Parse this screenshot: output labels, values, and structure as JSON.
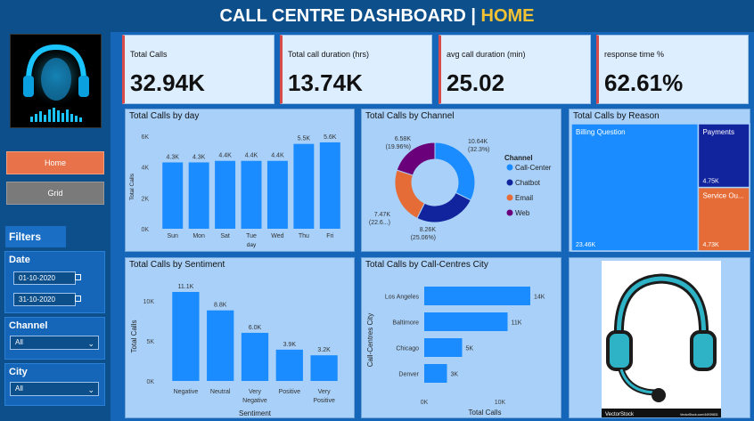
{
  "header": {
    "title": "CALL CENTRE DASHBOARD",
    "separator": " | ",
    "page": "HOME"
  },
  "nav": {
    "home": "Home",
    "grid": "Grid"
  },
  "filters": {
    "title": "Filters",
    "date_label": "Date",
    "date_from": "01-10-2020",
    "date_to": "31-10-2020",
    "channel_label": "Channel",
    "channel_value": "All",
    "city_label": "City",
    "city_value": "All"
  },
  "kpis": [
    {
      "title": "Total Calls",
      "value": "32.94K"
    },
    {
      "title": "Total call duration (hrs)",
      "value": "13.74K"
    },
    {
      "title": "avg call duration (min)",
      "value": "25.02"
    },
    {
      "title": "response time %",
      "value": "62.61%"
    }
  ],
  "chart_data": [
    {
      "type": "bar",
      "title": "Total Calls by day",
      "xlabel": "day",
      "ylabel": "Total Calls",
      "categories": [
        "Sun",
        "Mon",
        "Sat",
        "Tue",
        "Wed",
        "Thu",
        "Fri"
      ],
      "values": [
        4300,
        4300,
        4400,
        4400,
        4400,
        5500,
        5600
      ],
      "data_labels": [
        "4.3K",
        "4.3K",
        "4.4K",
        "4.4K",
        "4.4K",
        "5.5K",
        "5.6K"
      ],
      "y_ticks": [
        "0K",
        "2K",
        "4K",
        "6K"
      ],
      "ylim": [
        0,
        6000
      ]
    },
    {
      "type": "pie",
      "title": "Total Calls by Channel",
      "legend_title": "Channel",
      "legend_placement": "right",
      "slices": [
        {
          "name": "Call-Center",
          "value": 10640,
          "label": "10.64K",
          "pct": "(32.3%)",
          "color": "#1a8cff"
        },
        {
          "name": "Chatbot",
          "value": 8260,
          "label": "8.26K",
          "pct": "(25.06%)",
          "color": "#12239e"
        },
        {
          "name": "Email",
          "value": 7470,
          "label": "7.47K",
          "pct": "(22.6...)",
          "color": "#e66c37"
        },
        {
          "name": "Web",
          "value": 6580,
          "label": "6.58K",
          "pct": "(19.96%)",
          "color": "#6b007b"
        }
      ]
    },
    {
      "type": "treemap",
      "title": "Total Calls by Reason",
      "items": [
        {
          "name": "Billing Question",
          "value": 23460,
          "label": "23.46K",
          "color": "#1a8cff"
        },
        {
          "name": "Payments",
          "value": 4750,
          "label": "4.75K",
          "color": "#12239e"
        },
        {
          "name": "Service Ou...",
          "value": 4730,
          "label": "4.73K",
          "color": "#e66c37"
        }
      ]
    },
    {
      "type": "bar",
      "title": "Total Calls by Sentiment",
      "xlabel": "Sentiment",
      "ylabel": "Total Calls",
      "categories": [
        "Negative",
        "Neutral",
        "Very Negative",
        "Positive",
        "Very Positive"
      ],
      "values": [
        11100,
        8800,
        6000,
        3900,
        3200
      ],
      "data_labels": [
        "11.1K",
        "8.8K",
        "6.0K",
        "3.9K",
        "3.2K"
      ],
      "y_ticks": [
        "0K",
        "5K",
        "10K"
      ],
      "ylim": [
        0,
        11100
      ]
    },
    {
      "type": "bar",
      "orientation": "horizontal",
      "title": "Total Calls by Call-Centres City",
      "xlabel": "Total Calls",
      "ylabel": "Call-Centres City",
      "categories": [
        "Los Angeles",
        "Baltimore",
        "Chicago",
        "Denver"
      ],
      "values": [
        14000,
        11000,
        5000,
        3000
      ],
      "data_labels": [
        "14K",
        "11K",
        "5K",
        "3K"
      ],
      "x_ticks": [
        "0K",
        "10K"
      ],
      "xlim": [
        0,
        16000
      ]
    }
  ],
  "image": {
    "watermark_left": "VectorStock",
    "watermark_right": "VectorStock.com/44939831"
  },
  "colors": {
    "header_bg": "#0d4f8b",
    "accent_home": "#f2c232",
    "bar": "#1a8cff",
    "kpi_accent": "#d94b4b"
  }
}
